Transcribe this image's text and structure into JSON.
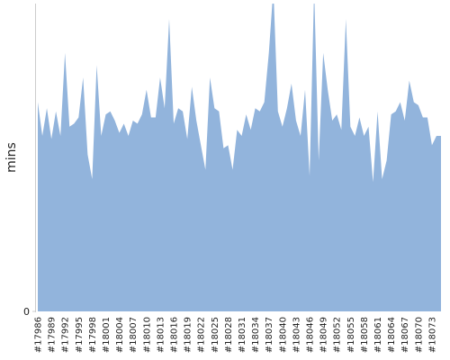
{
  "chart_data": {
    "type": "area",
    "y_label": "mins",
    "color": "#92b4dc",
    "categories": [
      "#17986",
      null,
      null,
      "#17989",
      null,
      null,
      "#17992",
      null,
      null,
      "#17995",
      null,
      null,
      "#17998",
      null,
      null,
      "#18001",
      null,
      null,
      "#18004",
      null,
      null,
      "#18007",
      null,
      null,
      "#18010",
      null,
      null,
      "#18013",
      null,
      null,
      "#18016",
      null,
      null,
      "#18019",
      null,
      null,
      "#18022",
      null,
      null,
      "#18025",
      null,
      null,
      "#18028",
      null,
      null,
      "#18031",
      null,
      null,
      "#18034",
      null,
      null,
      "#18037",
      null,
      null,
      "#18040",
      null,
      null,
      "#18043",
      null,
      null,
      "#18046",
      null,
      null,
      "#18049",
      null,
      null,
      "#18052",
      null,
      null,
      "#18055",
      null,
      null,
      "#18058",
      null,
      null,
      "#18061",
      null,
      null,
      "#18064",
      null,
      null,
      "#18067",
      null,
      null,
      "#18070",
      null,
      null,
      "#18073",
      null,
      null
    ],
    "values": [
      68,
      57,
      66,
      56,
      65,
      57,
      84,
      60,
      61,
      63,
      76,
      51,
      43,
      80,
      57,
      64,
      65,
      62,
      58,
      61,
      57,
      62,
      61,
      64,
      72,
      63,
      63,
      76,
      66,
      95,
      61,
      66,
      65,
      56,
      73,
      62,
      54,
      46,
      76,
      66,
      65,
      53,
      54,
      46,
      59,
      57,
      64,
      59,
      66,
      65,
      68,
      84,
      105,
      65,
      60,
      66,
      74,
      62,
      57,
      72,
      44,
      105,
      49,
      84,
      72,
      62,
      64,
      59,
      95,
      60,
      57,
      63,
      57,
      60,
      42,
      65,
      43,
      49,
      64,
      65,
      68,
      62,
      75,
      68,
      67,
      63,
      63,
      54,
      57,
      57
    ],
    "ylim": [
      0,
      100
    ],
    "yticks": [
      0
    ],
    "grid": false
  }
}
